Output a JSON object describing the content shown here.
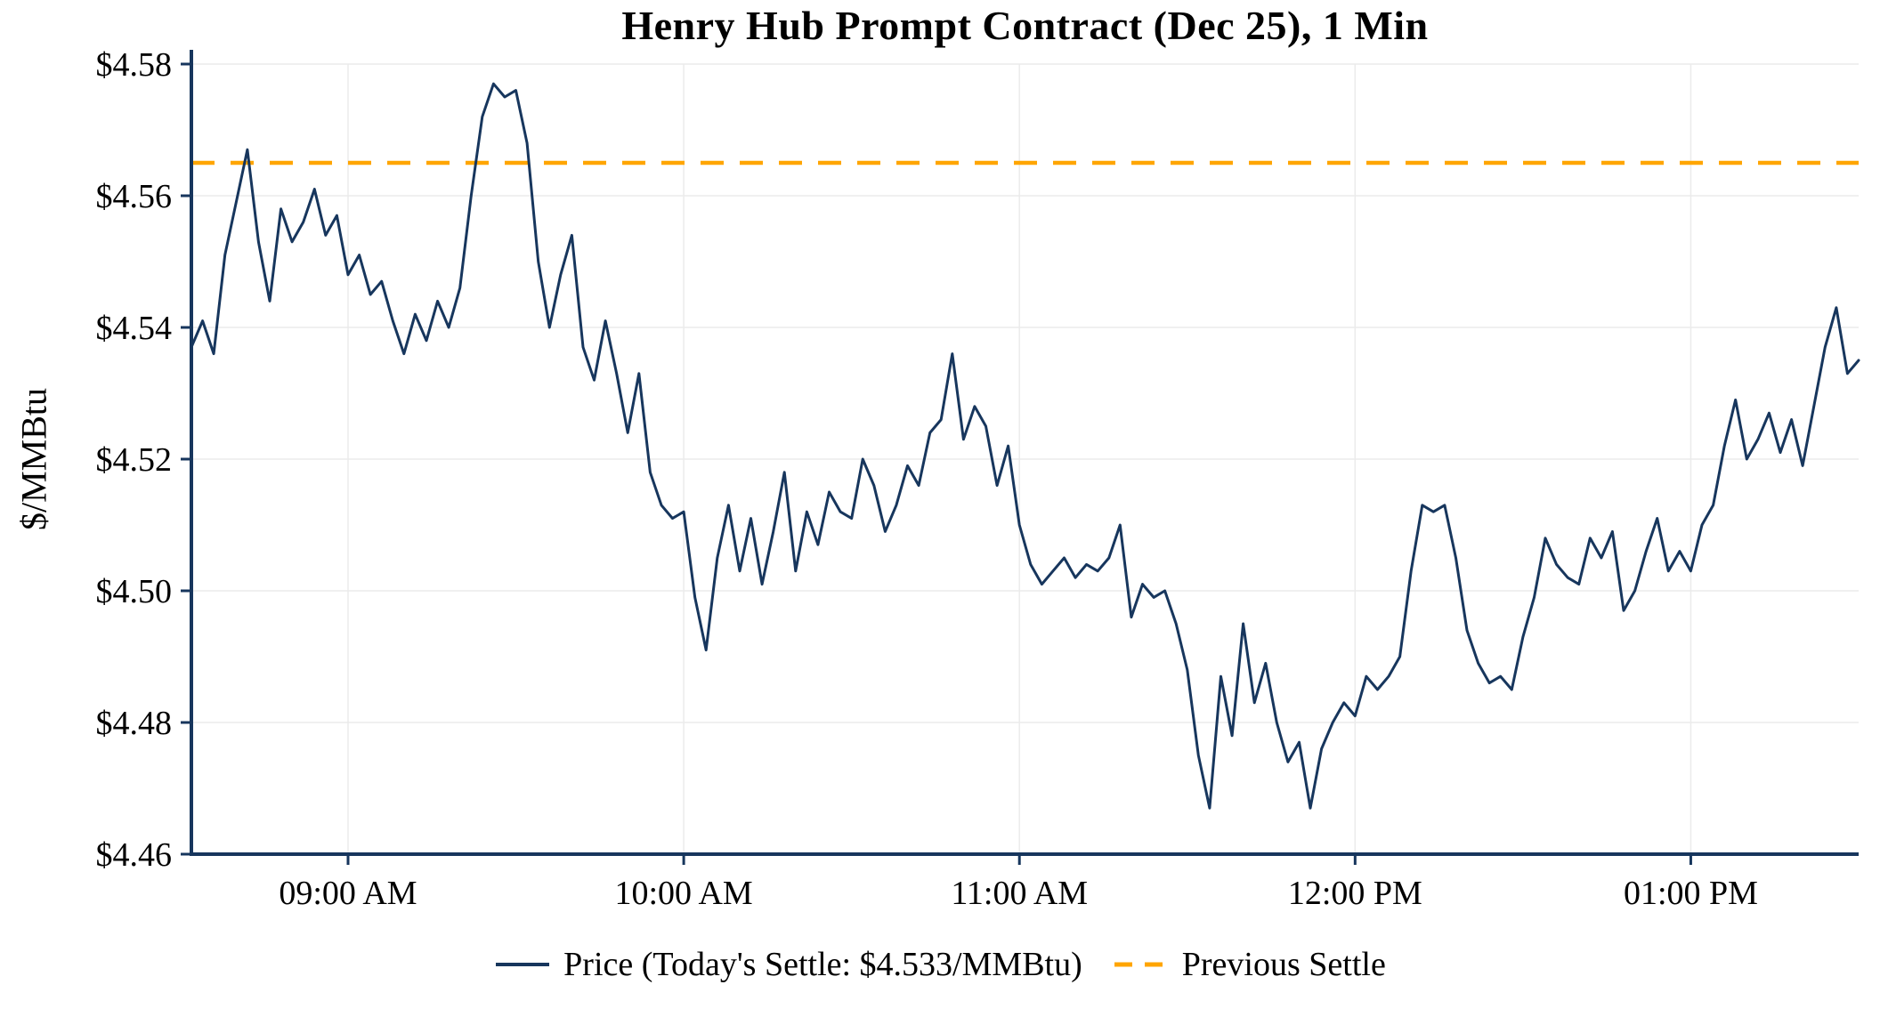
{
  "title": "Henry Hub Prompt Contract (Dec 25), 1 Min",
  "ylabel": "$/MMBtu",
  "legend": {
    "price_label": "Price (Today's Settle: $4.533/MMBtu)",
    "previous_settle_label": "Previous Settle"
  },
  "colors": {
    "price": "#17365d",
    "previous_settle": "#ffa500",
    "axis": "#17365d",
    "grid": "#ebebeb",
    "text": "#000000",
    "background": "#ffffff"
  },
  "chart_data": {
    "type": "line",
    "title": "Henry Hub Prompt Contract (Dec 25), 1 Min",
    "xlabel": "",
    "ylabel": "$/MMBtu",
    "ylim": [
      4.46,
      4.58
    ],
    "xlim_minutes": [
      512,
      810
    ],
    "x_start_minutes": 512,
    "x_interval_minutes": 2,
    "grid": true,
    "legend_position": "bottom",
    "previous_settle": 4.565,
    "todays_settle": 4.533,
    "x_axis_ticks": [
      {
        "minutes": 540,
        "label": "09:00 AM"
      },
      {
        "minutes": 600,
        "label": "10:00 AM"
      },
      {
        "minutes": 660,
        "label": "11:00 AM"
      },
      {
        "minutes": 720,
        "label": "12:00 PM"
      },
      {
        "minutes": 780,
        "label": "01:00 PM"
      }
    ],
    "y_ticks": [
      {
        "value": 4.46,
        "label": "$4.46"
      },
      {
        "value": 4.48,
        "label": "$4.48"
      },
      {
        "value": 4.5,
        "label": "$4.50"
      },
      {
        "value": 4.52,
        "label": "$4.52"
      },
      {
        "value": 4.54,
        "label": "$4.54"
      },
      {
        "value": 4.56,
        "label": "$4.56"
      },
      {
        "value": 4.58,
        "label": "$4.58"
      }
    ],
    "series": [
      {
        "name": "Price",
        "values": [
          4.537,
          4.541,
          4.536,
          4.551,
          4.559,
          4.567,
          4.553,
          4.544,
          4.558,
          4.553,
          4.556,
          4.561,
          4.554,
          4.557,
          4.548,
          4.551,
          4.545,
          4.547,
          4.541,
          4.536,
          4.542,
          4.538,
          4.544,
          4.54,
          4.546,
          4.56,
          4.572,
          4.577,
          4.575,
          4.576,
          4.568,
          4.55,
          4.54,
          4.548,
          4.554,
          4.537,
          4.532,
          4.541,
          4.533,
          4.524,
          4.533,
          4.518,
          4.513,
          4.511,
          4.512,
          4.499,
          4.491,
          4.505,
          4.513,
          4.503,
          4.511,
          4.501,
          4.509,
          4.518,
          4.503,
          4.512,
          4.507,
          4.515,
          4.512,
          4.511,
          4.52,
          4.516,
          4.509,
          4.513,
          4.519,
          4.516,
          4.524,
          4.526,
          4.536,
          4.523,
          4.528,
          4.525,
          4.516,
          4.522,
          4.51,
          4.504,
          4.501,
          4.503,
          4.505,
          4.502,
          4.504,
          4.503,
          4.505,
          4.51,
          4.496,
          4.501,
          4.499,
          4.5,
          4.495,
          4.488,
          4.475,
          4.467,
          4.487,
          4.478,
          4.495,
          4.483,
          4.489,
          4.48,
          4.474,
          4.477,
          4.467,
          4.476,
          4.48,
          4.483,
          4.481,
          4.487,
          4.485,
          4.487,
          4.49,
          4.503,
          4.513,
          4.512,
          4.513,
          4.505,
          4.494,
          4.489,
          4.486,
          4.487,
          4.485,
          4.493,
          4.499,
          4.508,
          4.504,
          4.502,
          4.501,
          4.508,
          4.505,
          4.509,
          4.497,
          4.5,
          4.506,
          4.511,
          4.503,
          4.506,
          4.503,
          4.51,
          4.513,
          4.522,
          4.529,
          4.52,
          4.523,
          4.527,
          4.521,
          4.526,
          4.519,
          4.528,
          4.537,
          4.543,
          4.533,
          4.535
        ]
      }
    ]
  }
}
